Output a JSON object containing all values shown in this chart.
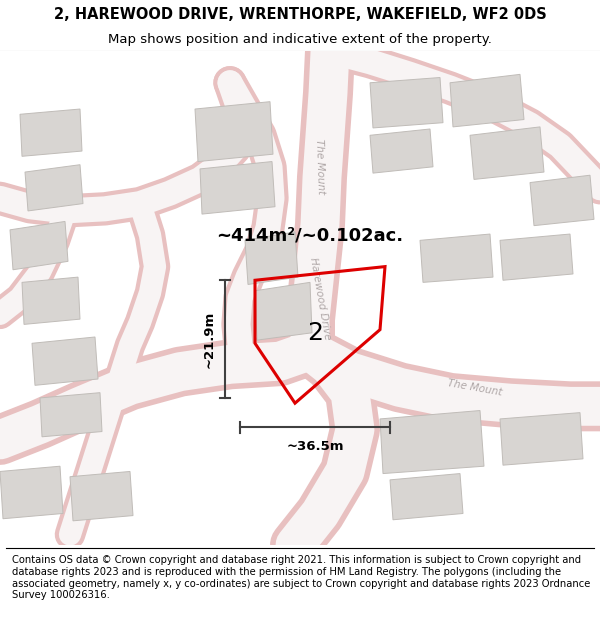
{
  "title": "2, HAREWOOD DRIVE, WRENTHORPE, WAKEFIELD, WF2 0DS",
  "subtitle": "Map shows position and indicative extent of the property.",
  "footer": "Contains OS data © Crown copyright and database right 2021. This information is subject to Crown copyright and database rights 2023 and is reproduced with the permission of HM Land Registry. The polygons (including the associated geometry, namely x, y co-ordinates) are subject to Crown copyright and database rights 2023 Ordnance Survey 100026316.",
  "area_label": "~414m²/~0.102ac.",
  "plot_number": "2",
  "dim_width": "~36.5m",
  "dim_height": "~21.9m",
  "map_bg": "#ffffff",
  "road_outer": "#e8c0c0",
  "road_inner": "#f8f4f4",
  "building_fill": "#d8d5d2",
  "building_edge": "#c0bcb8",
  "plot_edge_fill": "#e8e4e0",
  "red_color": "#dd0000",
  "title_fontsize": 10.5,
  "subtitle_fontsize": 9.5,
  "footer_fontsize": 7.2,
  "road_label_color": "#b0a8a8",
  "dim_line_color": "#404040"
}
